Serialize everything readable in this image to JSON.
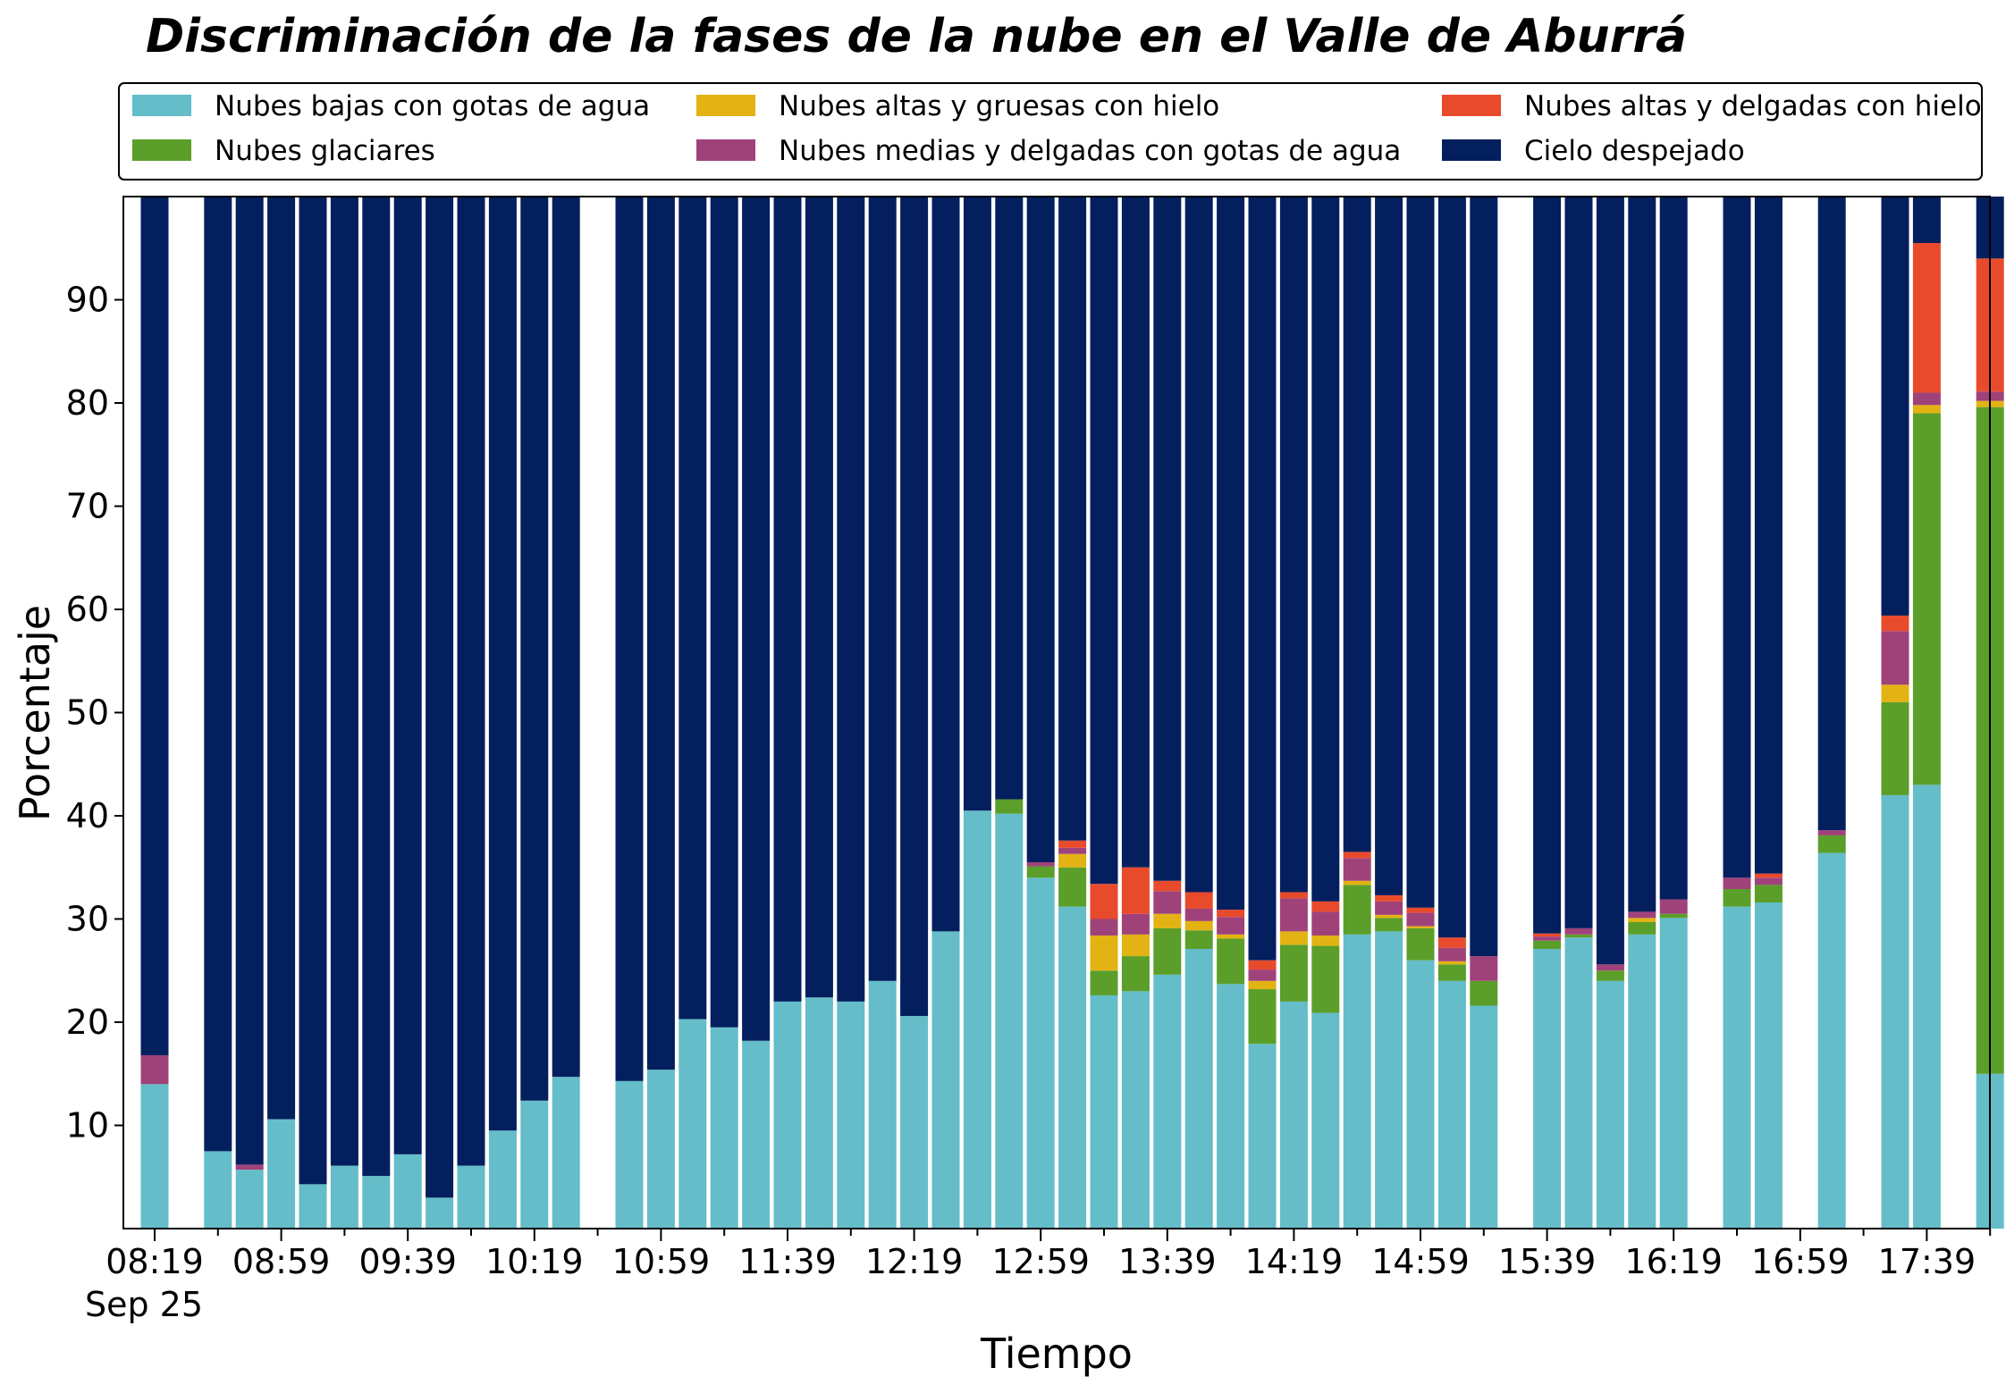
{
  "chart_data": {
    "type": "bar",
    "stacked": true,
    "title": "Discriminación de la fases de la nube en el Valle de Aburrá",
    "xlabel": "Tiempo",
    "ylabel": "Porcentaje",
    "ylim": [
      0,
      100
    ],
    "yticks": [
      "10",
      "20",
      "30",
      "40",
      "50",
      "60",
      "70",
      "80",
      "90"
    ],
    "xticks": [
      "08:19",
      "08:59",
      "09:39",
      "10:19",
      "10:59",
      "11:39",
      "12:19",
      "12:59",
      "13:39",
      "14:19",
      "14:59",
      "15:39",
      "16:19",
      "16:59",
      "17:39"
    ],
    "date_label": "Sep 25",
    "x_range": [
      "08:19",
      "18:19"
    ],
    "bar_interval_minutes": 10,
    "grid": false,
    "legend_position": "top",
    "categories": [
      "08:19",
      "08:29",
      "08:39",
      "08:49",
      "08:59",
      "09:09",
      "09:19",
      "09:29",
      "09:39",
      "09:49",
      "09:59",
      "10:09",
      "10:19",
      "10:29",
      "10:39",
      "10:49",
      "10:59",
      "11:09",
      "11:19",
      "11:29",
      "11:39",
      "11:49",
      "11:59",
      "12:09",
      "12:19",
      "12:29",
      "12:39",
      "12:49",
      "12:59",
      "13:09",
      "13:19",
      "13:29",
      "13:39",
      "13:49",
      "13:59",
      "14:09",
      "14:19",
      "14:29",
      "14:39",
      "14:49",
      "14:59",
      "15:09",
      "15:19",
      "15:29",
      "15:39",
      "15:49",
      "15:59",
      "16:09",
      "16:19",
      "16:29",
      "16:39",
      "16:49",
      "16:59",
      "17:09",
      "17:19",
      "17:29",
      "17:39",
      "17:49",
      "17:59",
      "18:09",
      "18:19"
    ],
    "series": [
      {
        "name": "Nubes bajas con gotas de agua",
        "color": "#64bdc9",
        "values": [
          14,
          null,
          7.5,
          5.7,
          10.6,
          4.3,
          6.1,
          5.1,
          7.2,
          3,
          6.1,
          9.5,
          12.4,
          14.7,
          null,
          14.3,
          15.4,
          20.3,
          19.5,
          18.2,
          22,
          22.4,
          22,
          24,
          20.6,
          28.8,
          40.5,
          40.2,
          34,
          31.2,
          22.6,
          23,
          24.6,
          27.1,
          23.7,
          17.9,
          22,
          20.9,
          28.5,
          28.8,
          26,
          24,
          21.6,
          null,
          27.1,
          28.2,
          24,
          28.5,
          30.1,
          null,
          31.2,
          31.6,
          null,
          36.4,
          null,
          42,
          43,
          null,
          15,
          null,
          null
        ]
      },
      {
        "name": "Nubes glaciares",
        "color": "#5b9e2a",
        "values": [
          0,
          null,
          0,
          0,
          0,
          0,
          0,
          0,
          0,
          0,
          0,
          0,
          0,
          0,
          null,
          0,
          0,
          0,
          0,
          0,
          0,
          0,
          0,
          0,
          0,
          0,
          0,
          1.4,
          1.1,
          3.8,
          2.4,
          3.4,
          4.5,
          1.8,
          4.4,
          5.3,
          5.5,
          6.5,
          4.8,
          1.3,
          3.1,
          1.6,
          2.4,
          null,
          0.8,
          0.3,
          1,
          1.2,
          0.4,
          null,
          1.7,
          1.7,
          null,
          1.7,
          null,
          9,
          36,
          null,
          64.6,
          null,
          null
        ]
      },
      {
        "name": "Nubes altas y gruesas con hielo",
        "color": "#e2b312",
        "values": [
          0,
          null,
          0,
          0,
          0,
          0,
          0,
          0,
          0,
          0,
          0,
          0,
          0,
          0,
          null,
          0,
          0,
          0,
          0,
          0,
          0,
          0,
          0,
          0,
          0,
          0,
          0,
          0,
          0,
          1.3,
          3.4,
          2.1,
          1.4,
          0.9,
          0.4,
          0.8,
          1.3,
          1,
          0.4,
          0.3,
          0.2,
          0.3,
          0,
          null,
          0,
          0,
          0,
          0.4,
          0,
          null,
          0,
          0,
          null,
          0,
          null,
          1.7,
          0.8,
          null,
          0.6,
          null,
          null
        ]
      },
      {
        "name": "Nubes medias y delgadas con gotas de agua",
        "color": "#a0427a",
        "values": [
          2.8,
          null,
          0,
          0.5,
          0,
          0,
          0,
          0,
          0,
          0,
          0,
          0,
          0,
          0,
          null,
          0,
          0,
          0,
          0,
          0,
          0,
          0,
          0,
          0,
          0,
          0,
          0,
          0,
          0.4,
          0.6,
          1.6,
          2,
          2.2,
          1.2,
          1.7,
          1.1,
          3.2,
          2.3,
          2.2,
          1.3,
          1.3,
          1.3,
          2.4,
          null,
          0.4,
          0.6,
          0.6,
          0.6,
          1.4,
          null,
          1.1,
          0.7,
          null,
          0.5,
          null,
          5.2,
          1.2,
          null,
          0.9,
          null,
          null
        ]
      },
      {
        "name": "Nubes altas y delgadas con hielo",
        "color": "#e84a2c",
        "values": [
          0,
          null,
          0,
          0,
          0,
          0,
          0,
          0,
          0,
          0,
          0,
          0,
          0,
          0,
          null,
          0,
          0,
          0,
          0,
          0,
          0,
          0,
          0,
          0,
          0,
          0,
          0,
          0,
          0,
          0.7,
          3.4,
          4.5,
          1,
          1.6,
          0.7,
          0.9,
          0.6,
          1,
          0.6,
          0.6,
          0.5,
          1,
          0,
          null,
          0.3,
          0,
          0,
          0,
          0,
          null,
          0,
          0.4,
          null,
          0,
          null,
          1.5,
          14.5,
          null,
          12.9,
          null,
          null
        ]
      },
      {
        "name": "Cielo despejado",
        "color": "#041f5e",
        "values": [
          83.2,
          null,
          92.5,
          93.8,
          89.4,
          95.7,
          93.9,
          94.9,
          92.8,
          97,
          93.9,
          90.5,
          87.6,
          85.3,
          null,
          85.7,
          84.6,
          79.7,
          80.5,
          81.8,
          78,
          77.6,
          78,
          76,
          79.4,
          71.2,
          59.5,
          58.4,
          64.5,
          62.4,
          66.6,
          65,
          66.3,
          67.4,
          69.1,
          74,
          67.4,
          68.3,
          63.5,
          67.7,
          68.9,
          71.8,
          73.6,
          null,
          71.4,
          70.9,
          74.4,
          69.3,
          68.1,
          null,
          66,
          65.6,
          null,
          61.4,
          null,
          40.6,
          4.5,
          null,
          6,
          null,
          null
        ]
      }
    ]
  }
}
